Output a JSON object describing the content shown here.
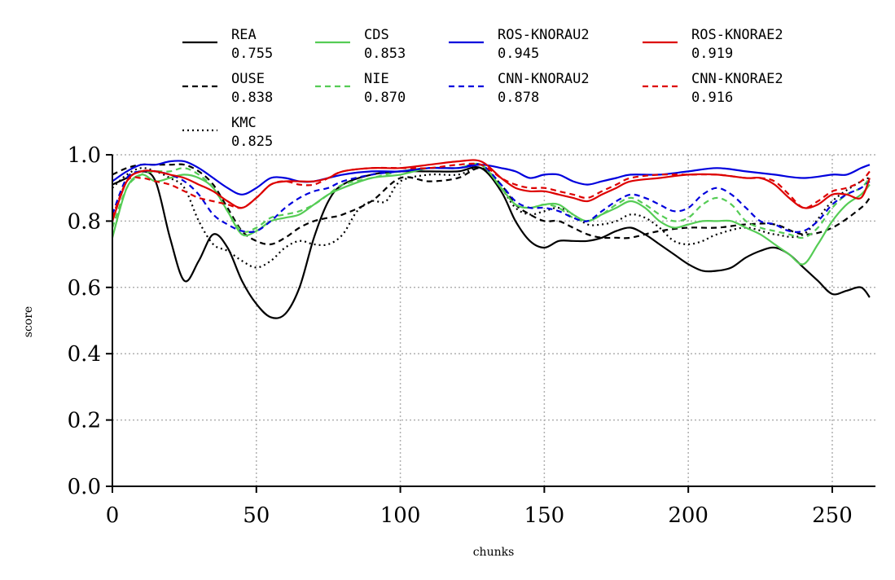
{
  "chart_data": {
    "type": "line",
    "xlabel": "chunks",
    "ylabel": "score",
    "xlim": [
      0,
      265
    ],
    "ylim": [
      0,
      1.0
    ],
    "xticks": [
      0,
      50,
      100,
      150,
      200,
      250
    ],
    "yticks": [
      0.0,
      0.2,
      0.4,
      0.6,
      0.8,
      1.0
    ],
    "xtick_labels": [
      "0",
      "50",
      "100",
      "150",
      "200",
      "250"
    ],
    "ytick_labels": [
      "0.0",
      "0.2",
      "0.4",
      "0.6",
      "0.8",
      "1.0"
    ],
    "grid": true,
    "legend_placement": "top, above plot, 4 columns",
    "series": [
      {
        "name": "REA",
        "score": "0.755",
        "color": "#000000",
        "dash": "solid",
        "x": [
          0,
          5,
          10,
          15,
          20,
          25,
          30,
          35,
          40,
          45,
          50,
          55,
          60,
          65,
          70,
          75,
          80,
          90,
          100,
          110,
          120,
          128,
          135,
          140,
          145,
          150,
          155,
          160,
          165,
          170,
          175,
          180,
          185,
          190,
          195,
          200,
          205,
          210,
          215,
          220,
          225,
          230,
          235,
          240,
          245,
          250,
          255,
          260,
          263
        ],
        "y": [
          0.91,
          0.93,
          0.95,
          0.92,
          0.75,
          0.62,
          0.68,
          0.76,
          0.72,
          0.62,
          0.55,
          0.51,
          0.52,
          0.6,
          0.75,
          0.86,
          0.91,
          0.94,
          0.95,
          0.95,
          0.95,
          0.96,
          0.89,
          0.8,
          0.74,
          0.72,
          0.74,
          0.74,
          0.74,
          0.75,
          0.77,
          0.78,
          0.76,
          0.73,
          0.7,
          0.67,
          0.65,
          0.65,
          0.66,
          0.69,
          0.71,
          0.72,
          0.7,
          0.66,
          0.62,
          0.58,
          0.59,
          0.6,
          0.57
        ]
      },
      {
        "name": "OUSE",
        "score": "0.838",
        "color": "#000000",
        "dash": "dashed",
        "x": [
          0,
          5,
          10,
          15,
          20,
          25,
          30,
          35,
          40,
          45,
          50,
          55,
          60,
          65,
          70,
          75,
          80,
          90,
          100,
          110,
          120,
          128,
          135,
          140,
          145,
          150,
          155,
          160,
          165,
          170,
          175,
          180,
          190,
          200,
          210,
          220,
          230,
          240,
          250,
          260,
          263
        ],
        "y": [
          0.94,
          0.96,
          0.97,
          0.97,
          0.97,
          0.97,
          0.95,
          0.91,
          0.84,
          0.77,
          0.74,
          0.73,
          0.75,
          0.78,
          0.8,
          0.81,
          0.82,
          0.86,
          0.93,
          0.92,
          0.93,
          0.96,
          0.91,
          0.85,
          0.82,
          0.8,
          0.8,
          0.78,
          0.76,
          0.75,
          0.75,
          0.75,
          0.77,
          0.78,
          0.78,
          0.79,
          0.79,
          0.76,
          0.78,
          0.84,
          0.87
        ]
      },
      {
        "name": "KMC",
        "score": "0.825",
        "color": "#000000",
        "dash": "dotted",
        "x": [
          0,
          5,
          10,
          15,
          20,
          25,
          30,
          35,
          40,
          45,
          50,
          55,
          60,
          65,
          70,
          75,
          80,
          85,
          90,
          95,
          100,
          110,
          120,
          128,
          135,
          140,
          145,
          150,
          155,
          160,
          165,
          170,
          175,
          180,
          185,
          190,
          195,
          200,
          205,
          210,
          220,
          230,
          240,
          250,
          260,
          263
        ],
        "y": [
          0.9,
          0.94,
          0.96,
          0.95,
          0.93,
          0.9,
          0.8,
          0.73,
          0.71,
          0.68,
          0.66,
          0.68,
          0.72,
          0.74,
          0.73,
          0.73,
          0.76,
          0.83,
          0.86,
          0.86,
          0.92,
          0.94,
          0.94,
          0.96,
          0.9,
          0.84,
          0.82,
          0.83,
          0.84,
          0.82,
          0.79,
          0.79,
          0.8,
          0.82,
          0.81,
          0.78,
          0.74,
          0.73,
          0.74,
          0.76,
          0.78,
          0.76,
          0.76,
          0.86,
          0.92,
          0.93
        ]
      },
      {
        "name": "CDS",
        "score": "0.853",
        "color": "#55cc55",
        "dash": "solid",
        "x": [
          0,
          5,
          10,
          15,
          20,
          25,
          30,
          35,
          40,
          45,
          50,
          55,
          60,
          65,
          70,
          75,
          80,
          90,
          100,
          110,
          120,
          128,
          135,
          140,
          145,
          150,
          155,
          160,
          165,
          170,
          175,
          180,
          185,
          190,
          195,
          200,
          205,
          210,
          215,
          220,
          225,
          230,
          235,
          240,
          245,
          250,
          255,
          260,
          263
        ],
        "y": [
          0.75,
          0.9,
          0.94,
          0.92,
          0.93,
          0.94,
          0.93,
          0.9,
          0.83,
          0.76,
          0.77,
          0.8,
          0.81,
          0.82,
          0.85,
          0.88,
          0.9,
          0.93,
          0.94,
          0.96,
          0.96,
          0.97,
          0.9,
          0.85,
          0.84,
          0.85,
          0.85,
          0.82,
          0.8,
          0.82,
          0.84,
          0.86,
          0.84,
          0.8,
          0.78,
          0.79,
          0.8,
          0.8,
          0.8,
          0.78,
          0.76,
          0.73,
          0.7,
          0.67,
          0.73,
          0.8,
          0.85,
          0.88,
          0.91
        ]
      },
      {
        "name": "NIE",
        "score": "0.870",
        "color": "#55cc55",
        "dash": "dashed",
        "x": [
          0,
          5,
          10,
          15,
          20,
          25,
          30,
          35,
          40,
          45,
          50,
          55,
          60,
          65,
          70,
          75,
          80,
          90,
          100,
          110,
          120,
          128,
          135,
          140,
          145,
          150,
          155,
          160,
          165,
          170,
          175,
          180,
          185,
          190,
          195,
          200,
          205,
          210,
          215,
          220,
          225,
          230,
          235,
          240,
          245,
          250,
          255,
          260,
          263
        ],
        "y": [
          0.78,
          0.9,
          0.94,
          0.95,
          0.95,
          0.96,
          0.94,
          0.9,
          0.83,
          0.77,
          0.78,
          0.81,
          0.82,
          0.83,
          0.85,
          0.88,
          0.91,
          0.93,
          0.95,
          0.96,
          0.96,
          0.97,
          0.9,
          0.85,
          0.84,
          0.85,
          0.84,
          0.81,
          0.8,
          0.82,
          0.85,
          0.87,
          0.85,
          0.82,
          0.8,
          0.81,
          0.85,
          0.87,
          0.85,
          0.8,
          0.78,
          0.77,
          0.76,
          0.75,
          0.78,
          0.84,
          0.88,
          0.9,
          0.93
        ]
      },
      {
        "name": "ROS-KNORAU2",
        "score": "0.945",
        "color": "#0000dd",
        "dash": "solid",
        "x": [
          0,
          5,
          10,
          15,
          20,
          25,
          30,
          35,
          40,
          45,
          50,
          55,
          60,
          65,
          70,
          80,
          90,
          100,
          110,
          120,
          128,
          135,
          140,
          145,
          150,
          155,
          160,
          165,
          170,
          175,
          180,
          190,
          200,
          210,
          220,
          230,
          240,
          250,
          255,
          260,
          263
        ],
        "y": [
          0.92,
          0.95,
          0.97,
          0.97,
          0.98,
          0.98,
          0.96,
          0.93,
          0.9,
          0.88,
          0.9,
          0.93,
          0.93,
          0.92,
          0.92,
          0.94,
          0.95,
          0.95,
          0.96,
          0.96,
          0.97,
          0.96,
          0.95,
          0.93,
          0.94,
          0.94,
          0.92,
          0.91,
          0.92,
          0.93,
          0.94,
          0.94,
          0.95,
          0.96,
          0.95,
          0.94,
          0.93,
          0.94,
          0.94,
          0.96,
          0.97
        ]
      },
      {
        "name": "CNN-KNORAU2",
        "score": "0.878",
        "color": "#0000dd",
        "dash": "dashed",
        "x": [
          0,
          5,
          10,
          15,
          20,
          25,
          30,
          35,
          40,
          45,
          50,
          55,
          60,
          65,
          70,
          75,
          80,
          90,
          100,
          110,
          120,
          128,
          135,
          140,
          145,
          150,
          155,
          160,
          165,
          170,
          175,
          180,
          185,
          190,
          195,
          200,
          205,
          210,
          215,
          220,
          225,
          230,
          235,
          240,
          245,
          250,
          255,
          260,
          263
        ],
        "y": [
          0.82,
          0.93,
          0.95,
          0.95,
          0.94,
          0.92,
          0.88,
          0.82,
          0.79,
          0.77,
          0.77,
          0.8,
          0.84,
          0.87,
          0.89,
          0.9,
          0.92,
          0.94,
          0.95,
          0.96,
          0.96,
          0.97,
          0.91,
          0.86,
          0.84,
          0.84,
          0.83,
          0.81,
          0.8,
          0.83,
          0.86,
          0.88,
          0.87,
          0.85,
          0.83,
          0.84,
          0.88,
          0.9,
          0.88,
          0.84,
          0.8,
          0.79,
          0.77,
          0.77,
          0.8,
          0.85,
          0.88,
          0.9,
          0.92
        ]
      },
      {
        "name": "ROS-KNORAE2",
        "score": "0.919",
        "color": "#dd0000",
        "dash": "solid",
        "x": [
          0,
          5,
          10,
          15,
          20,
          25,
          30,
          35,
          40,
          45,
          50,
          55,
          60,
          65,
          70,
          75,
          80,
          90,
          100,
          110,
          120,
          128,
          135,
          140,
          145,
          150,
          155,
          160,
          165,
          170,
          175,
          180,
          190,
          200,
          210,
          220,
          225,
          230,
          235,
          240,
          245,
          250,
          255,
          260,
          263
        ],
        "y": [
          0.8,
          0.92,
          0.95,
          0.95,
          0.94,
          0.93,
          0.91,
          0.89,
          0.86,
          0.84,
          0.87,
          0.91,
          0.92,
          0.92,
          0.92,
          0.93,
          0.95,
          0.96,
          0.96,
          0.97,
          0.98,
          0.98,
          0.93,
          0.9,
          0.89,
          0.89,
          0.88,
          0.87,
          0.86,
          0.88,
          0.9,
          0.92,
          0.93,
          0.94,
          0.94,
          0.93,
          0.93,
          0.91,
          0.87,
          0.84,
          0.85,
          0.88,
          0.88,
          0.87,
          0.93
        ]
      },
      {
        "name": "CNN-KNORAE2",
        "score": "0.916",
        "color": "#dd0000",
        "dash": "dashed",
        "x": [
          0,
          5,
          10,
          15,
          20,
          25,
          30,
          35,
          40,
          45,
          50,
          55,
          60,
          65,
          70,
          75,
          80,
          90,
          100,
          110,
          120,
          128,
          135,
          140,
          145,
          150,
          155,
          160,
          165,
          170,
          175,
          180,
          190,
          200,
          210,
          220,
          225,
          230,
          235,
          240,
          245,
          250,
          255,
          260,
          263
        ],
        "y": [
          0.81,
          0.92,
          0.93,
          0.92,
          0.91,
          0.89,
          0.87,
          0.86,
          0.85,
          0.84,
          0.87,
          0.91,
          0.92,
          0.91,
          0.91,
          0.93,
          0.95,
          0.96,
          0.96,
          0.96,
          0.97,
          0.97,
          0.93,
          0.91,
          0.9,
          0.9,
          0.89,
          0.88,
          0.87,
          0.89,
          0.91,
          0.93,
          0.94,
          0.94,
          0.94,
          0.93,
          0.93,
          0.92,
          0.88,
          0.84,
          0.86,
          0.89,
          0.9,
          0.92,
          0.95
        ]
      }
    ]
  }
}
